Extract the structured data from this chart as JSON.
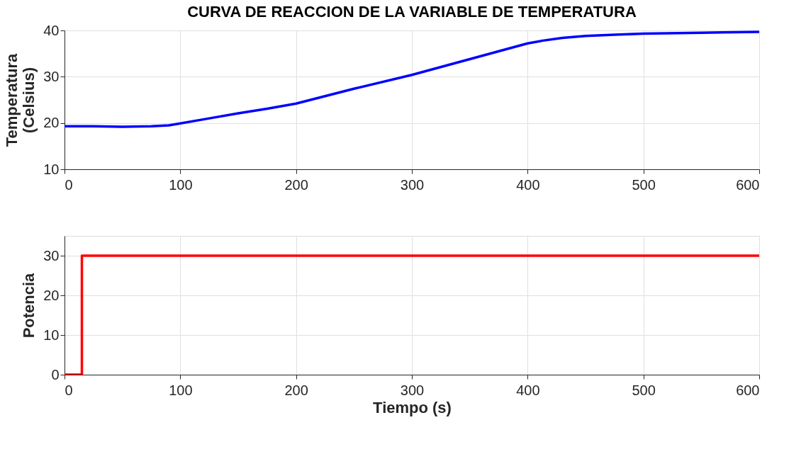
{
  "chart_data": [
    {
      "type": "line",
      "title": "CURVA DE REACCION DE LA VARIABLE DE TEMPERATURA",
      "ylabel": "Temperatura\n(Celsius)",
      "x": [
        0,
        25,
        50,
        75,
        90,
        100,
        125,
        150,
        175,
        200,
        250,
        300,
        350,
        400,
        413,
        430,
        450,
        475,
        500,
        550,
        600
      ],
      "series": [
        {
          "color": "#0000ff",
          "values": [
            19.3,
            19.3,
            19.2,
            19.3,
            19.5,
            19.9,
            21.0,
            22.1,
            23.1,
            24.2,
            27.4,
            30.4,
            33.8,
            37.2,
            37.8,
            38.4,
            38.8,
            39.1,
            39.3,
            39.5,
            39.7
          ]
        }
      ],
      "xlim": [
        0,
        600
      ],
      "xticks": [
        0,
        100,
        200,
        300,
        400,
        500,
        600
      ],
      "ylim": [
        10,
        40
      ],
      "yticks": [
        10,
        20,
        30,
        40
      ],
      "grid": true
    },
    {
      "type": "line",
      "xlabel": "Tiempo (s)",
      "ylabel": "Potencia",
      "x": [
        0,
        15,
        15,
        600
      ],
      "series": [
        {
          "color": "#ff0000",
          "values": [
            0,
            0,
            30,
            30
          ]
        }
      ],
      "xlim": [
        0,
        600
      ],
      "xticks": [
        0,
        100,
        200,
        300,
        400,
        500,
        600
      ],
      "ylim": [
        0,
        35
      ],
      "yticks": [
        0,
        10,
        20,
        30
      ],
      "grid": true
    }
  ]
}
